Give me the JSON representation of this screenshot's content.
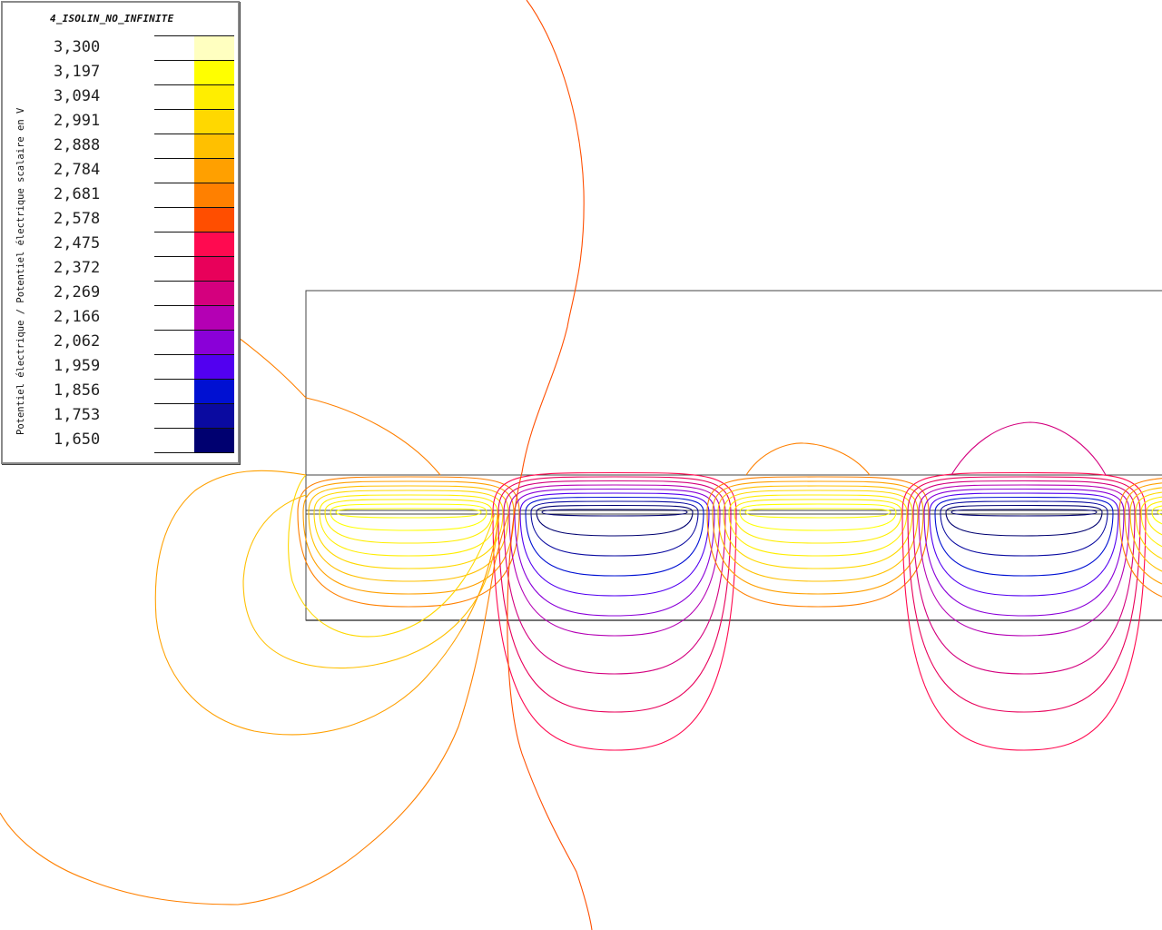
{
  "legend": {
    "title": "4_ISOLIN_NO_INFINITE",
    "quantity": "Potentiel électrique / Potentiel électrique scalaire en V",
    "levels": [
      {
        "value": "3,300",
        "color": "#ffffc0"
      },
      {
        "value": "3,197",
        "color": "#ffff00"
      },
      {
        "value": "3,094",
        "color": "#ffee00"
      },
      {
        "value": "2,991",
        "color": "#ffd800"
      },
      {
        "value": "2,888",
        "color": "#ffc000"
      },
      {
        "value": "2,784",
        "color": "#ffa000"
      },
      {
        "value": "2,681",
        "color": "#ff8000"
      },
      {
        "value": "2,578",
        "color": "#ff4e00"
      },
      {
        "value": "2,475",
        "color": "#ff0a50"
      },
      {
        "value": "2,372",
        "color": "#e8005a"
      },
      {
        "value": "2,269",
        "color": "#d4007e"
      },
      {
        "value": "2,166",
        "color": "#b400b4"
      },
      {
        "value": "2,062",
        "color": "#8a00d8"
      },
      {
        "value": "1,959",
        "color": "#5200f0"
      },
      {
        "value": "1,856",
        "color": "#0010d2"
      },
      {
        "value": "1,753",
        "color": "#0a0aa0"
      },
      {
        "value": "1,650",
        "color": "#000070"
      }
    ]
  },
  "plot": {
    "outline_color": "#444444",
    "electrodes": [
      {
        "potential": "high"
      },
      {
        "potential": "low"
      },
      {
        "potential": "high"
      },
      {
        "potential": "low"
      },
      {
        "potential": "high"
      }
    ]
  }
}
